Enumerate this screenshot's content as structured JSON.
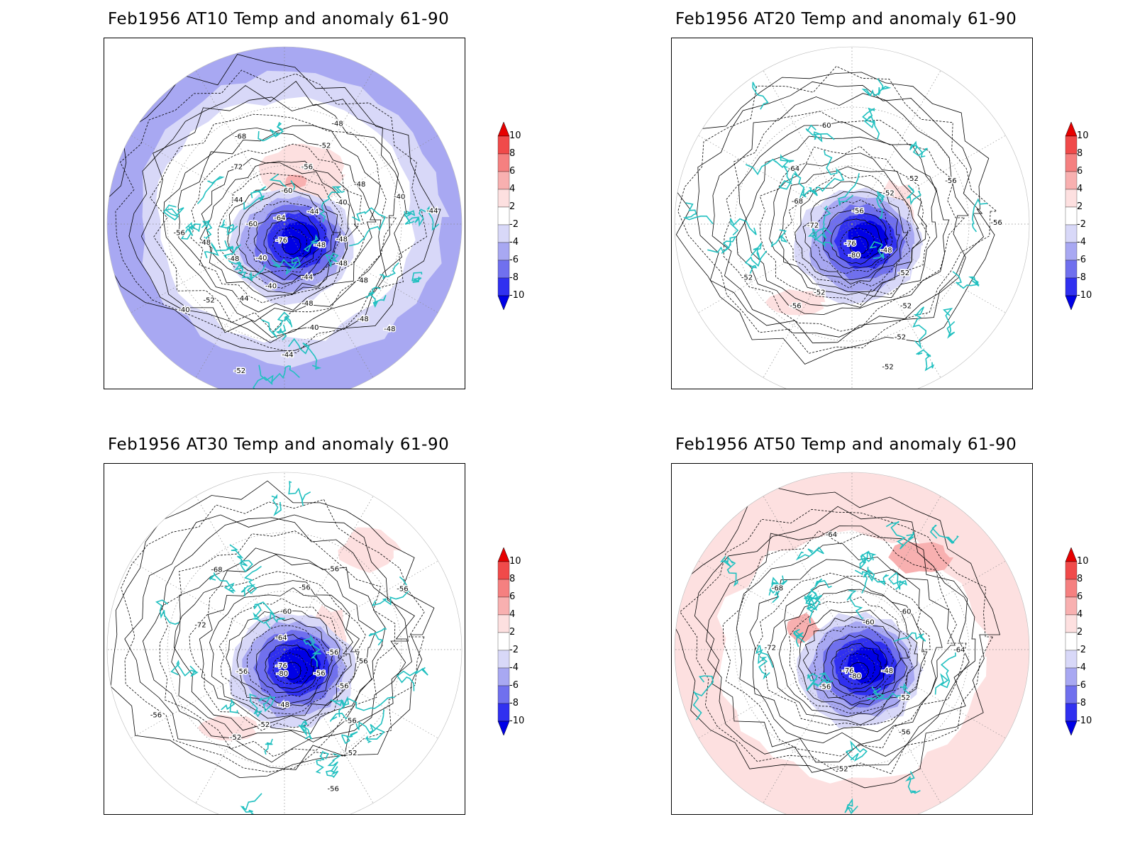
{
  "panels": [
    {
      "id": "at10",
      "title": "Feb1956 AT10 Temp and anomaly 61-90",
      "style": "cold",
      "contour_labels": [
        "-48",
        "-48",
        "-48",
        "-48",
        "-48",
        "-44",
        "-48",
        "-40",
        "-44",
        "-52",
        "-40",
        "-44",
        "-52",
        "-40",
        "-40",
        "-48",
        "-48",
        "-56",
        "-76",
        "-60",
        "-44",
        "-72",
        "-68",
        "-64",
        "-60",
        "-56",
        "-52",
        "-48",
        "-44",
        "-40",
        "-48",
        "-40",
        "-44",
        "-48"
      ]
    },
    {
      "id": "at20",
      "title": "Feb1956 AT20 Temp and anomaly 61-90",
      "style": "neutral",
      "contour_labels": [
        "-48",
        "-52",
        "-52",
        "-52",
        "-52",
        "-80",
        "-52",
        "-56",
        "-52",
        "-76",
        "-72",
        "-68",
        "-64",
        "-60",
        "-56",
        "-52",
        "-52",
        "-56",
        "-56"
      ]
    },
    {
      "id": "at30",
      "title": "Feb1956 AT30 Temp and anomaly 61-90",
      "style": "neutral",
      "contour_labels": [
        "-56",
        "-56",
        "-56",
        "-52",
        "-56",
        "-48",
        "-52",
        "-52",
        "-80",
        "-56",
        "-56",
        "-76",
        "-72",
        "-68",
        "-64",
        "-60",
        "-56",
        "-56",
        "-56",
        "-56",
        "-56"
      ]
    },
    {
      "id": "at50",
      "title": "Feb1956 AT50 Temp and anomaly 61-90",
      "style": "warm",
      "contour_labels": [
        "-48",
        "-52",
        "-56",
        "-52",
        "-80",
        "-56",
        "-76",
        "-72",
        "-68",
        "-64",
        "-60",
        "-60",
        "-64"
      ]
    }
  ],
  "colorbar": {
    "labels": [
      "10",
      "8",
      "6",
      "4",
      "2",
      "-2",
      "-4",
      "-6",
      "-8",
      "-10"
    ],
    "colors": [
      "#e60000",
      "#f04a4a",
      "#f58080",
      "#f8b0b0",
      "#fde0e0",
      "#ffffff",
      "#d8d8f8",
      "#a8a8f2",
      "#7070ee",
      "#3030f0",
      "#0000e6"
    ]
  },
  "colors": {
    "coastline": "#21c0c0",
    "contour": "#000000",
    "grid": "#888888"
  }
}
